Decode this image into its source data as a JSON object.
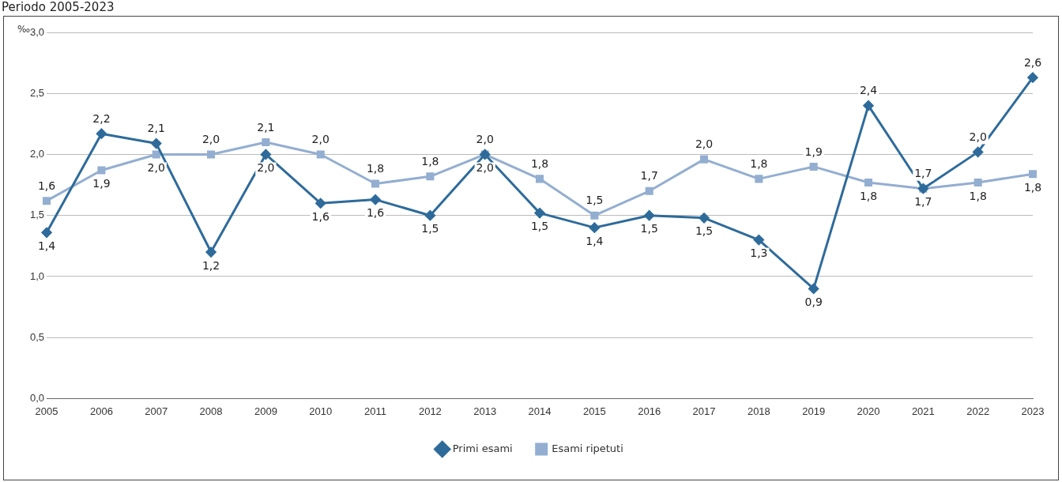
{
  "chart_data": {
    "type": "line",
    "title": "Periodo 2005-2023",
    "ylabel": "‰",
    "categories": [
      "2005",
      "2006",
      "2007",
      "2008",
      "2009",
      "2010",
      "2011",
      "2012",
      "2013",
      "2014",
      "2015",
      "2016",
      "2017",
      "2018",
      "2019",
      "2020",
      "2021",
      "2022",
      "2023"
    ],
    "series": [
      {
        "name": "Primi esami",
        "color": "#2e6b9a",
        "marker": "diamond",
        "values": [
          1.36,
          2.17,
          2.09,
          1.2,
          2.0,
          1.6,
          1.63,
          1.5,
          2.0,
          1.52,
          1.4,
          1.5,
          1.48,
          1.3,
          0.9,
          2.4,
          1.72,
          2.02,
          2.63
        ],
        "value_labels": [
          "1,4",
          "2,2",
          "2,1",
          "1,2",
          "2,0",
          "1,6",
          "1,6",
          "1,5",
          "2,0",
          "1,5",
          "1,4",
          "1,5",
          "1,5",
          "1,3",
          "0,9",
          "2,4",
          "1,7",
          "2,0",
          "2,6"
        ]
      },
      {
        "name": "Esami ripetuti",
        "color": "#93aed0",
        "marker": "square",
        "values": [
          1.62,
          1.87,
          2.0,
          2.0,
          2.1,
          2.0,
          1.76,
          1.82,
          2.0,
          1.8,
          1.5,
          1.7,
          1.96,
          1.8,
          1.9,
          1.77,
          1.72,
          1.77,
          1.84
        ],
        "value_labels": [
          "1,6",
          "1,9",
          "2,0",
          "2,0",
          "2,1",
          "2,0",
          "1,8",
          "1,8",
          "2,0",
          "1,8",
          "1,5",
          "1,7",
          "2,0",
          "1,8",
          "1,9",
          "1,8",
          "1,7",
          "1,8",
          "1,8"
        ]
      }
    ],
    "ylim": [
      0,
      3
    ],
    "yticks": [
      {
        "value": 0,
        "label": "0,0"
      },
      {
        "value": 0.5,
        "label": "0,5"
      },
      {
        "value": 1,
        "label": "1,0"
      },
      {
        "value": 1.5,
        "label": "1,5"
      },
      {
        "value": 2,
        "label": "2,0"
      },
      {
        "value": 2.5,
        "label": "2,5"
      },
      {
        "value": 3,
        "label": "3,0"
      }
    ],
    "grid": "y",
    "legend": "bottom"
  }
}
